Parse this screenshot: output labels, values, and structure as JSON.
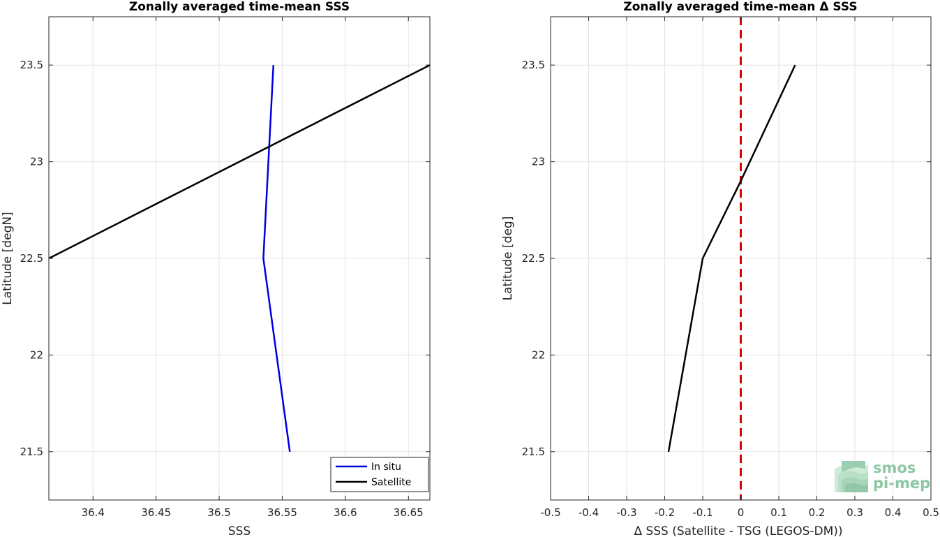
{
  "chart_data": [
    {
      "type": "line",
      "title": "Zonally averaged time-mean SSS",
      "xlabel": "SSS",
      "ylabel": "Latitude [degN]",
      "xlim": [
        36.365,
        36.667
      ],
      "ylim": [
        21.25,
        23.75
      ],
      "xticks": [
        36.4,
        36.45,
        36.5,
        36.55,
        36.6,
        36.65
      ],
      "xtick_labels": [
        "36.4",
        "36.45",
        "36.5",
        "36.55",
        "36.6",
        "36.65"
      ],
      "yticks": [
        21.5,
        22,
        22.5,
        23,
        23.5
      ],
      "ytick_labels": [
        "21.5",
        "22",
        "22.5",
        "23",
        "23.5"
      ],
      "grid": true,
      "legend_position": "bottom-right",
      "series": [
        {
          "name": "In situ",
          "color": "#0000dd",
          "x": [
            36.556,
            36.535,
            36.539,
            36.543
          ],
          "y": [
            21.5,
            22.5,
            23.0,
            23.5
          ]
        },
        {
          "name": "Satellite",
          "color": "#000000",
          "x": [
            36.365,
            36.667
          ],
          "y": [
            22.5,
            23.5
          ]
        }
      ]
    },
    {
      "type": "line",
      "title": "Zonally averaged time-mean Δ SSS",
      "xlabel": "Δ SSS (Satellite - TSG (LEGOS-DM))",
      "ylabel": "Latitude [deg]",
      "xlim": [
        -0.5,
        0.5
      ],
      "ylim": [
        21.25,
        23.75
      ],
      "xticks": [
        -0.5,
        -0.4,
        -0.3,
        -0.2,
        -0.1,
        0,
        0.1,
        0.2,
        0.3,
        0.4,
        0.5
      ],
      "xtick_labels": [
        "-0.5",
        "-0.4",
        "-0.3",
        "-0.2",
        "-0.1",
        "0",
        "0.1",
        "0.2",
        "0.3",
        "0.4",
        "0.5"
      ],
      "yticks": [
        21.5,
        22,
        22.5,
        23,
        23.5
      ],
      "ytick_labels": [
        "21.5",
        "22",
        "22.5",
        "23",
        "23.5"
      ],
      "grid": true,
      "reference_line": {
        "x": 0,
        "color": "#dd0000",
        "style": "dashed"
      },
      "series": [
        {
          "color": "#000000",
          "x": [
            -0.19,
            -0.1,
            0.0,
            0.143
          ],
          "y": [
            21.5,
            22.5,
            22.9,
            23.5
          ]
        }
      ]
    }
  ],
  "logo": {
    "line1": "smos",
    "line2": "pi-mep",
    "color": "#8cc7a3"
  }
}
